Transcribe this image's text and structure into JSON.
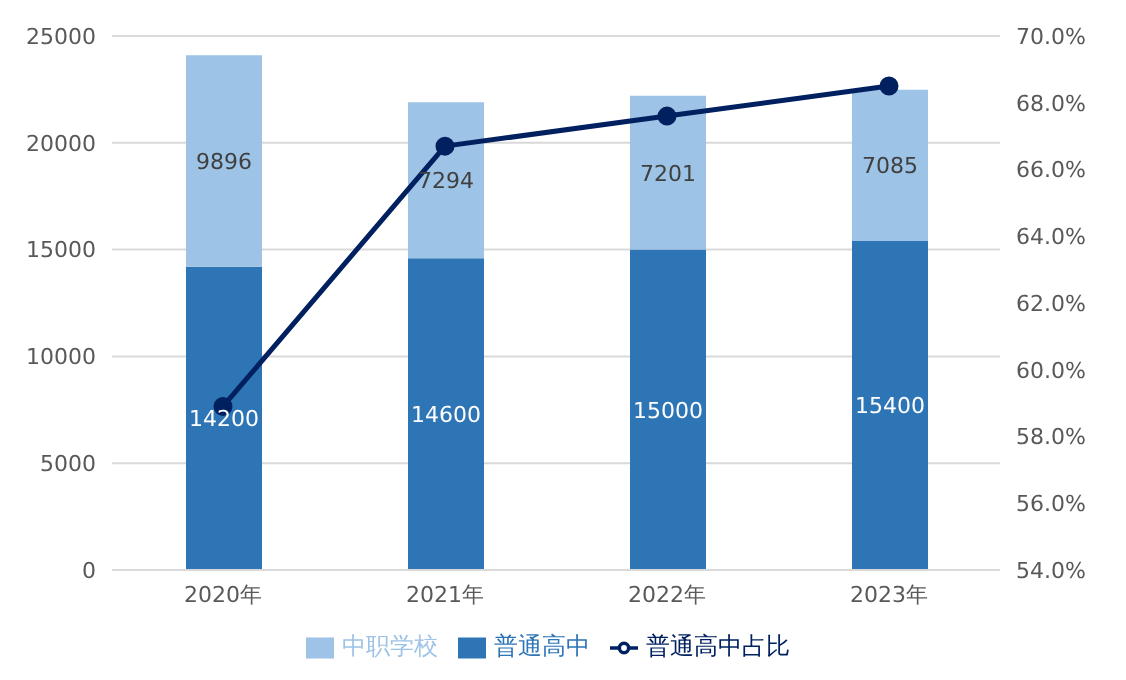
{
  "chart_data": {
    "type": "bar",
    "stacked": true,
    "categories": [
      "2020年",
      "2021年",
      "2022年",
      "2023年"
    ],
    "series": [
      {
        "name": "普通高中",
        "color": "#2e75b6",
        "values": [
          14200,
          14600,
          15000,
          15400
        ],
        "value_labels": [
          "14200",
          "14600",
          "15000",
          "15400"
        ]
      },
      {
        "name": "中职学校",
        "color": "#9dc3e6",
        "values": [
          9896,
          7294,
          7201,
          7085
        ],
        "value_labels": [
          "9896",
          "7294",
          "7201",
          "7085"
        ]
      },
      {
        "name": "普通高中占比",
        "type": "line",
        "axis": "y2",
        "color": "#002060",
        "values": [
          58.9,
          66.7,
          67.6,
          68.5
        ]
      }
    ],
    "ylim": [
      0,
      25000
    ],
    "yticks": [
      0,
      5000,
      10000,
      15000,
      20000,
      25000
    ],
    "y2lim": [
      54,
      70
    ],
    "y2ticks": [
      {
        "value": 54,
        "label": "54.0%"
      },
      {
        "value": 56,
        "label": "56.0%"
      },
      {
        "value": 58,
        "label": "58.0%"
      },
      {
        "value": 60,
        "label": "60.0%"
      },
      {
        "value": 62,
        "label": "62.0%"
      },
      {
        "value": 64,
        "label": "64.0%"
      },
      {
        "value": 66,
        "label": "66.0%"
      },
      {
        "value": 68,
        "label": "68.0%"
      },
      {
        "value": 70,
        "label": "70.0%"
      }
    ],
    "grid": "y",
    "legend": "bottom",
    "marker": "circle",
    "line_style": "solid"
  }
}
